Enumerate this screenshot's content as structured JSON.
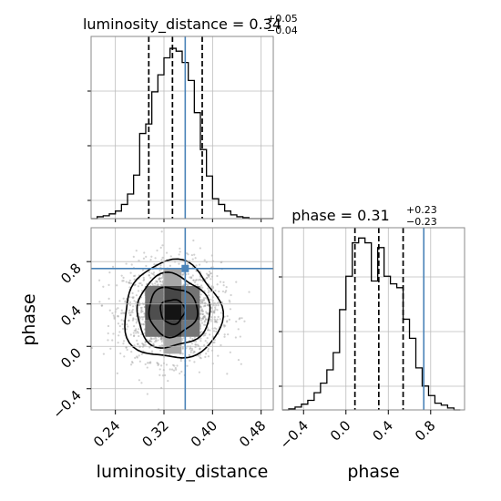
{
  "chart_data": {
    "type": "corner",
    "parameters": [
      "luminosity_distance",
      "phase"
    ],
    "truths": {
      "luminosity_distance": 0.355,
      "phase": 0.735
    },
    "titles": {
      "luminosity_distance": {
        "prefix": "luminosity_distance = 0.34",
        "upper": "+0.05",
        "lower": "−0.04"
      },
      "phase": {
        "prefix": "phase = 0.31",
        "upper": "+0.23",
        "lower": "−0.23"
      }
    },
    "axis_labels": {
      "x_left": "luminosity_distance",
      "x_right": "phase",
      "y_lower": "phase"
    },
    "ticks": {
      "luminosity_distance": {
        "values": [
          0.24,
          0.32,
          0.4,
          0.48
        ],
        "labels": [
          "0.24",
          "0.32",
          "0.40",
          "0.48"
        ],
        "range": [
          0.2,
          0.5
        ]
      },
      "phase": {
        "values": [
          -0.4,
          0.0,
          0.4,
          0.8
        ],
        "labels": [
          "−0.4",
          "0.0",
          "0.4",
          "0.8"
        ],
        "range": [
          -0.6,
          1.12
        ]
      }
    },
    "quantiles": {
      "luminosity_distance": [
        0.295,
        0.334,
        0.383
      ],
      "phase": [
        0.085,
        0.31,
        0.54
      ]
    },
    "histograms": {
      "luminosity_distance": {
        "edges": [
          0.2,
          0.21,
          0.22,
          0.23,
          0.24,
          0.25,
          0.26,
          0.27,
          0.28,
          0.29,
          0.3,
          0.31,
          0.32,
          0.33,
          0.34,
          0.35,
          0.36,
          0.37,
          0.38,
          0.39,
          0.4,
          0.41,
          0.42,
          0.43,
          0.44,
          0.45,
          0.46,
          0.47,
          0.48,
          0.49,
          0.5
        ],
        "counts": [
          0,
          2,
          3,
          5,
          8,
          15,
          26,
          46,
          90,
          100,
          134,
          152,
          170,
          180,
          177,
          165,
          146,
          112,
          73,
          45,
          21,
          15,
          8,
          4,
          2,
          1,
          0,
          0,
          0,
          0
        ]
      },
      "phase": {
        "edges": [
          -0.6,
          -0.54,
          -0.48,
          -0.42,
          -0.36,
          -0.3,
          -0.24,
          -0.18,
          -0.12,
          -0.06,
          0.0,
          0.06,
          0.12,
          0.18,
          0.24,
          0.3,
          0.36,
          0.42,
          0.48,
          0.54,
          0.6,
          0.66,
          0.72,
          0.78,
          0.84,
          0.9,
          0.96,
          1.02,
          1.08
        ],
        "counts": [
          0,
          1,
          3,
          6,
          10,
          18,
          28,
          42,
          60,
          105,
          140,
          175,
          180,
          175,
          135,
          170,
          140,
          132,
          128,
          95,
          75,
          44,
          25,
          15,
          7,
          5,
          2,
          0
        ]
      }
    },
    "density_2d": {
      "x_param": "luminosity_distance",
      "y_param": "phase",
      "mean": [
        0.334,
        0.33
      ],
      "std": [
        0.04,
        0.23
      ],
      "contour_levels_sigma": [
        0.5,
        1.0,
        1.5,
        2.0
      ],
      "scatter_points": 1800
    }
  }
}
